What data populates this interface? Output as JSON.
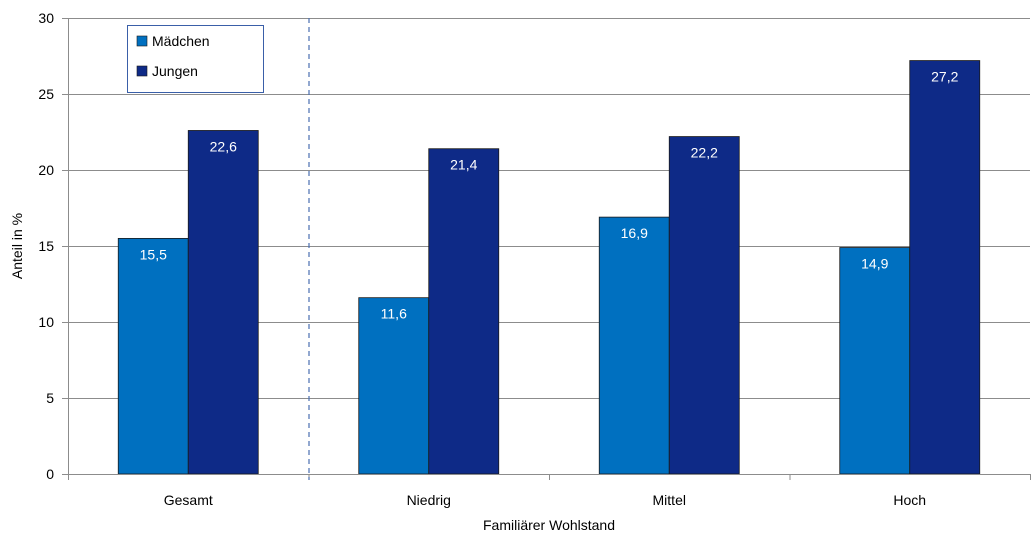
{
  "chart_data": {
    "type": "bar",
    "categories": [
      "Gesamt",
      "Niedrig",
      "Mittel",
      "Hoch"
    ],
    "series": [
      {
        "name": "Mädchen",
        "values": [
          15.5,
          11.6,
          16.9,
          14.9
        ],
        "color": "#0070C0"
      },
      {
        "name": "Jungen",
        "values": [
          22.6,
          21.4,
          22.2,
          27.2
        ],
        "color": "#0E2A87"
      }
    ],
    "value_labels": [
      [
        "15,5",
        "11,6",
        "16,9",
        "14,9"
      ],
      [
        "22,6",
        "21,4",
        "22,2",
        "27,2"
      ]
    ],
    "title": "",
    "xlabel": "Familiärer Wohlstand",
    "ylabel": "Anteil in %",
    "ylim": [
      0,
      30
    ],
    "yticks": [
      0,
      5,
      10,
      15,
      20,
      25,
      30
    ],
    "grid": true,
    "legend_position": "top-left",
    "separator_after_category": "Gesamt"
  }
}
